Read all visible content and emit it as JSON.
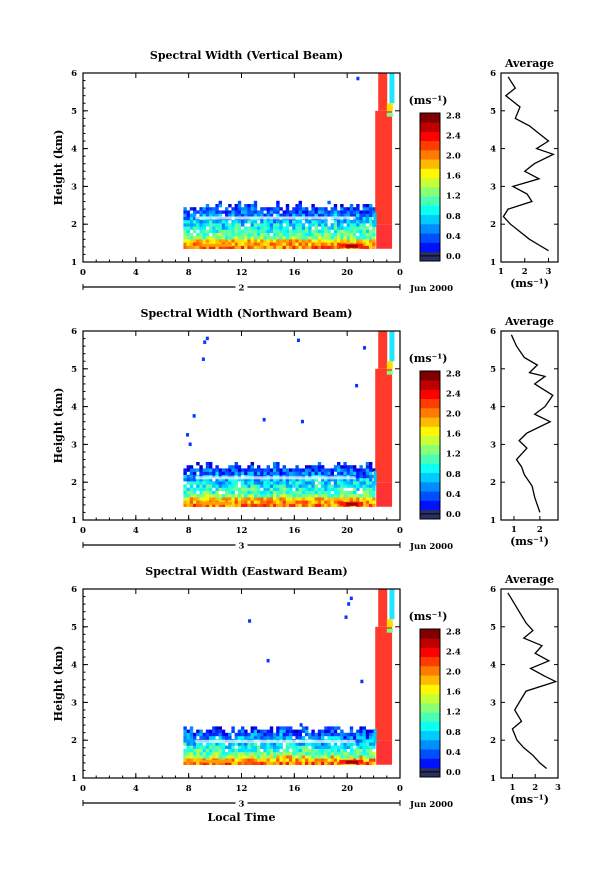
{
  "chart_data": [
    {
      "type": "heatmap",
      "title": "Spectral Width (Vertical Beam)",
      "ylabel": "Height (km)",
      "x_ticks": [
        "0",
        "4",
        "8",
        "12",
        "16",
        "20",
        "0"
      ],
      "xlim": [
        0,
        24
      ],
      "ylim": [
        1,
        6
      ],
      "y_ticks": [
        "1",
        "2",
        "3",
        "4",
        "5",
        "6"
      ],
      "date_day": "2",
      "date_label": "Jun 2000",
      "colorbar": {
        "unit": "(ms⁻¹)",
        "ticks": [
          "0.0",
          "0.4",
          "0.8",
          "1.2",
          "1.6",
          "2.0",
          "2.4",
          "2.8"
        ],
        "range": [
          0,
          3
        ]
      },
      "data_region": {
        "x_start": 7.6,
        "x_end": 22.0,
        "top": 2.55,
        "bottom": 1.35
      },
      "red_region": {
        "x_start": 22.2,
        "x_end": 23.4
      },
      "specks": [
        [
          20.7,
          5.9
        ]
      ],
      "profile": {
        "title": "Average",
        "xlabel": "(ms⁻¹)",
        "x_ticks": [
          "1",
          "2",
          "3"
        ],
        "xlim": [
          1,
          3.4
        ],
        "points": [
          [
            1.3,
            5.9
          ],
          [
            1.6,
            5.6
          ],
          [
            1.2,
            5.4
          ],
          [
            1.8,
            5.1
          ],
          [
            1.6,
            4.8
          ],
          [
            2.2,
            4.6
          ],
          [
            2.6,
            4.4
          ],
          [
            3.0,
            4.2
          ],
          [
            2.5,
            4.0
          ],
          [
            3.2,
            3.85
          ],
          [
            2.4,
            3.6
          ],
          [
            2.0,
            3.4
          ],
          [
            2.6,
            3.2
          ],
          [
            1.5,
            3.0
          ],
          [
            2.1,
            2.8
          ],
          [
            2.3,
            2.6
          ],
          [
            1.3,
            2.4
          ],
          [
            1.1,
            2.2
          ],
          [
            1.4,
            2.0
          ],
          [
            1.8,
            1.8
          ],
          [
            2.2,
            1.6
          ],
          [
            2.6,
            1.45
          ],
          [
            3.0,
            1.3
          ]
        ]
      }
    },
    {
      "type": "heatmap",
      "title": "Spectral Width (Northward Beam)",
      "ylabel": "Height (km)",
      "x_ticks": [
        "0",
        "4",
        "8",
        "12",
        "16",
        "20",
        "0"
      ],
      "xlim": [
        0,
        24
      ],
      "ylim": [
        1,
        6
      ],
      "y_ticks": [
        "1",
        "2",
        "3",
        "4",
        "5",
        "6"
      ],
      "date_day": "3",
      "date_label": "Jun 2000",
      "colorbar": {
        "unit": "(ms⁻¹)",
        "ticks": [
          "0.0",
          "0.4",
          "0.8",
          "1.2",
          "1.6",
          "2.0",
          "2.4",
          "2.8"
        ],
        "range": [
          0,
          3
        ]
      },
      "data_region": {
        "x_start": 7.6,
        "x_end": 22.0,
        "top": 2.5,
        "bottom": 1.35
      },
      "red_region": {
        "x_start": 22.2,
        "x_end": 23.4
      },
      "specks": [
        [
          9.1,
          5.75
        ],
        [
          9.3,
          5.85
        ],
        [
          9.0,
          5.3
        ],
        [
          16.2,
          5.8
        ],
        [
          8.3,
          3.8
        ],
        [
          13.6,
          3.7
        ],
        [
          16.5,
          3.65
        ],
        [
          20.6,
          4.6
        ],
        [
          21.2,
          5.6
        ],
        [
          7.8,
          3.3
        ],
        [
          8.0,
          3.05
        ]
      ],
      "profile": {
        "title": "Average",
        "xlabel": "(ms⁻¹)",
        "x_ticks": [
          "1",
          "2"
        ],
        "xlim": [
          0.5,
          2.7
        ],
        "points": [
          [
            0.9,
            5.9
          ],
          [
            1.1,
            5.6
          ],
          [
            1.4,
            5.3
          ],
          [
            1.9,
            5.1
          ],
          [
            1.6,
            4.9
          ],
          [
            2.2,
            4.8
          ],
          [
            1.8,
            4.6
          ],
          [
            2.5,
            4.3
          ],
          [
            2.2,
            4.0
          ],
          [
            1.8,
            3.8
          ],
          [
            2.4,
            3.6
          ],
          [
            1.5,
            3.3
          ],
          [
            1.2,
            3.1
          ],
          [
            1.5,
            2.9
          ],
          [
            1.1,
            2.6
          ],
          [
            1.3,
            2.4
          ],
          [
            1.4,
            2.2
          ],
          [
            1.7,
            1.9
          ],
          [
            1.8,
            1.6
          ],
          [
            1.9,
            1.4
          ],
          [
            2.0,
            1.2
          ]
        ]
      }
    },
    {
      "type": "heatmap",
      "title": "Spectral Width (Eastward Beam)",
      "ylabel": "Height (km)",
      "x_ticks": [
        "0",
        "4",
        "8",
        "12",
        "16",
        "20",
        "0"
      ],
      "xlim": [
        0,
        24
      ],
      "ylim": [
        1,
        6
      ],
      "y_ticks": [
        "1",
        "2",
        "3",
        "4",
        "5",
        "6"
      ],
      "date_day": "3",
      "date_label": "Jun 2000",
      "colorbar": {
        "unit": "(ms⁻¹)",
        "ticks": [
          "0.0",
          "0.4",
          "0.8",
          "1.2",
          "1.6",
          "2.0",
          "2.4",
          "2.8"
        ],
        "range": [
          0,
          3
        ]
      },
      "data_region": {
        "x_start": 7.6,
        "x_end": 22.0,
        "top": 2.35,
        "bottom": 1.35
      },
      "red_region": {
        "x_start": 22.2,
        "x_end": 23.4
      },
      "specks": [
        [
          20.0,
          5.65
        ],
        [
          20.2,
          5.8
        ],
        [
          19.8,
          5.3
        ],
        [
          12.5,
          5.2
        ],
        [
          13.9,
          4.15
        ],
        [
          16.4,
          2.45
        ],
        [
          21.0,
          3.6
        ]
      ],
      "xlabel": "Local Time",
      "profile": {
        "title": "Average",
        "xlabel": "(ms⁻¹)",
        "x_ticks": [
          "1",
          "2",
          "3"
        ],
        "xlim": [
          0.5,
          3.0
        ],
        "points": [
          [
            0.8,
            5.9
          ],
          [
            1.0,
            5.7
          ],
          [
            1.3,
            5.4
          ],
          [
            1.6,
            5.1
          ],
          [
            1.9,
            4.9
          ],
          [
            1.5,
            4.7
          ],
          [
            2.3,
            4.5
          ],
          [
            2.0,
            4.3
          ],
          [
            2.6,
            4.1
          ],
          [
            1.8,
            3.9
          ],
          [
            2.4,
            3.7
          ],
          [
            2.9,
            3.55
          ],
          [
            1.6,
            3.3
          ],
          [
            1.3,
            3.0
          ],
          [
            1.1,
            2.8
          ],
          [
            1.4,
            2.5
          ],
          [
            1.0,
            2.3
          ],
          [
            1.2,
            2.0
          ],
          [
            1.5,
            1.8
          ],
          [
            1.9,
            1.6
          ],
          [
            2.2,
            1.4
          ],
          [
            2.5,
            1.25
          ]
        ]
      }
    }
  ]
}
